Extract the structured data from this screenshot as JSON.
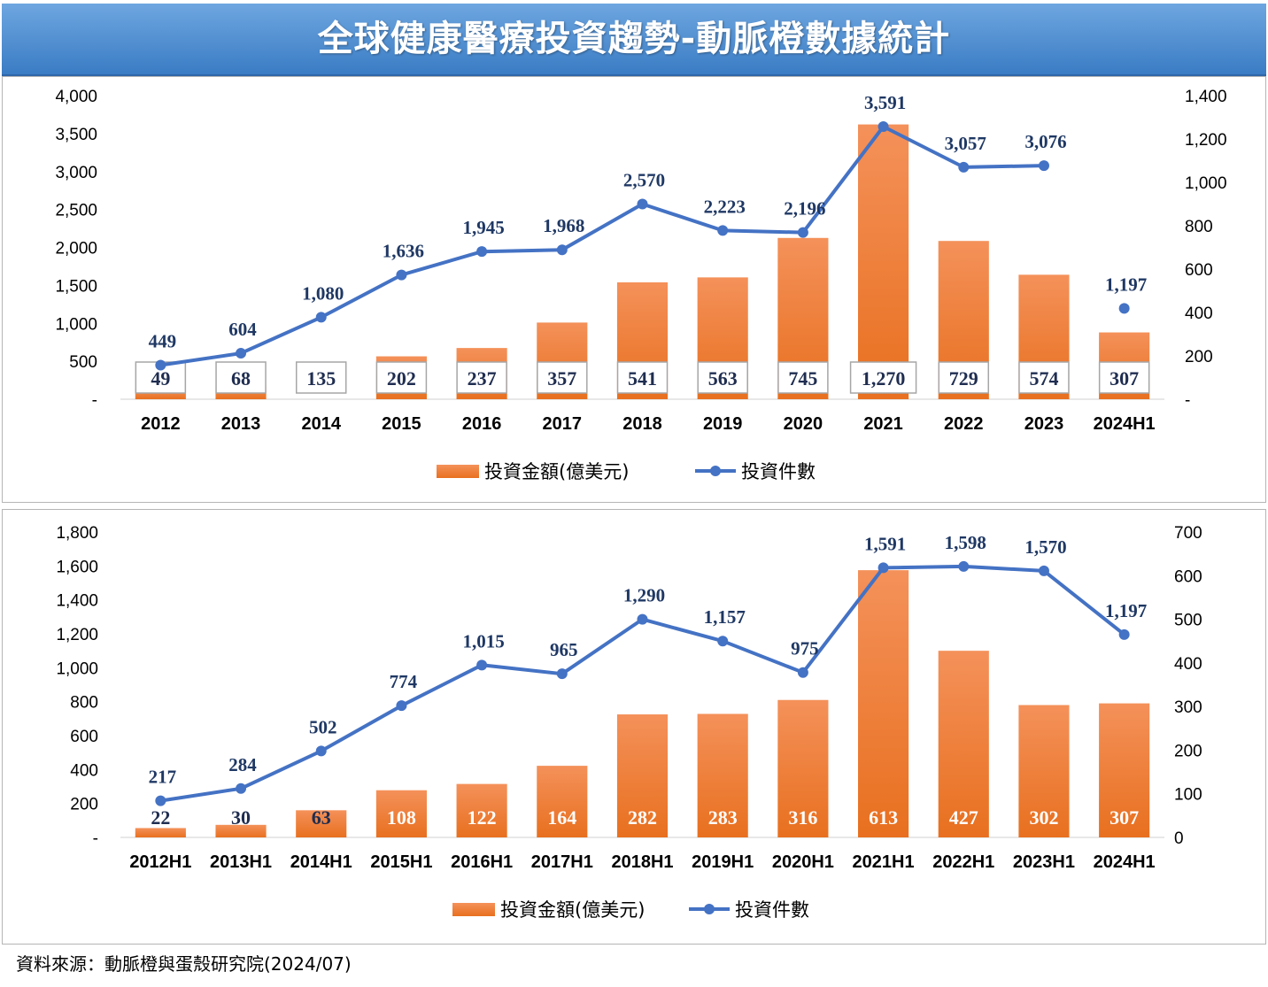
{
  "title": "全球健康醫療投資趨勢-動脈橙數據統計",
  "source": "資料來源：動脈橙與蛋殼研究院(2024/07)",
  "colors": {
    "bar_top": "#f4915a",
    "bar_bottom": "#e8701f",
    "line": "#4472c4",
    "title_bg": "#4a8ad0"
  },
  "chart_data": [
    {
      "type": "bar",
      "categories": [
        "2012",
        "2013",
        "2014",
        "2015",
        "2016",
        "2017",
        "2018",
        "2019",
        "2020",
        "2021",
        "2022",
        "2023",
        "2024H1"
      ],
      "series": [
        {
          "name": "投資金額(億美元)",
          "kind": "bar",
          "axis": "left",
          "values": [
            135,
            179,
            0,
            565,
            675,
            1010,
            1540,
            1605,
            2125,
            3620,
            2085,
            1640,
            880
          ],
          "labels": [
            "49",
            "68",
            "135",
            "202",
            "237",
            "357",
            "541",
            "563",
            "745",
            "1,270",
            "729",
            "574",
            "307"
          ]
        },
        {
          "name": "投資件數",
          "kind": "line",
          "axis": "right",
          "values": [
            157,
            212,
            378,
            573,
            681,
            689,
            900,
            778,
            769,
            1257,
            1070,
            1077,
            419
          ],
          "labels": [
            "449",
            "604",
            "1,080",
            "1,636",
            "1,945",
            "1,968",
            "2,570",
            "2,223",
            "2,196",
            "3,591",
            "3,057",
            "3,076",
            "1,197"
          ],
          "connected_through_index": 11
        }
      ],
      "y_left": {
        "min": 0,
        "max": 4000,
        "ticks": [
          "-",
          "500",
          "1,000",
          "1,500",
          "2,000",
          "2,500",
          "3,000",
          "3,500",
          "4,000"
        ]
      },
      "y_right": {
        "min": 0,
        "max": 1400,
        "ticks": [
          "-",
          "200",
          "400",
          "600",
          "800",
          "1,000",
          "1,200",
          "1,400"
        ]
      },
      "bar_labels_boxed": true,
      "legend": [
        "投資金額(億美元)",
        "投資件數"
      ],
      "legend_position": "bottom"
    },
    {
      "type": "bar",
      "categories": [
        "2012H1",
        "2013H1",
        "2014H1",
        "2015H1",
        "2016H1",
        "2017H1",
        "2018H1",
        "2019H1",
        "2020H1",
        "2021H1",
        "2022H1",
        "2023H1",
        "2024H1"
      ],
      "series": [
        {
          "name": "投資金額(億美元)",
          "kind": "bar",
          "axis": "left",
          "values": [
            55,
            74,
            160,
            278,
            315,
            422,
            725,
            728,
            810,
            1575,
            1100,
            780,
            790
          ],
          "labels": [
            "22",
            "30",
            "63",
            "108",
            "122",
            "164",
            "282",
            "283",
            "316",
            "613",
            "427",
            "302",
            "307"
          ]
        },
        {
          "name": "投資件數",
          "kind": "line",
          "axis": "right",
          "values": [
            84,
            112,
            198,
            302,
            395,
            375,
            500,
            450,
            378,
            618,
            621,
            611,
            465
          ],
          "labels": [
            "217",
            "284",
            "502",
            "774",
            "1,015",
            "965",
            "1,290",
            "1,157",
            "975",
            "1,591",
            "1,598",
            "1,570",
            "1,197"
          ],
          "connected_through_index": 12
        }
      ],
      "y_left": {
        "min": 0,
        "max": 1800,
        "ticks": [
          "-",
          "200",
          "400",
          "600",
          "800",
          "1,000",
          "1,200",
          "1,400",
          "1,600",
          "1,800"
        ]
      },
      "y_right": {
        "min": 0,
        "max": 700,
        "ticks": [
          "0",
          "100",
          "200",
          "300",
          "400",
          "500",
          "600",
          "700"
        ]
      },
      "bar_labels_boxed": false,
      "legend": [
        "投資金額(億美元)",
        "投資件數"
      ],
      "legend_position": "bottom"
    }
  ]
}
